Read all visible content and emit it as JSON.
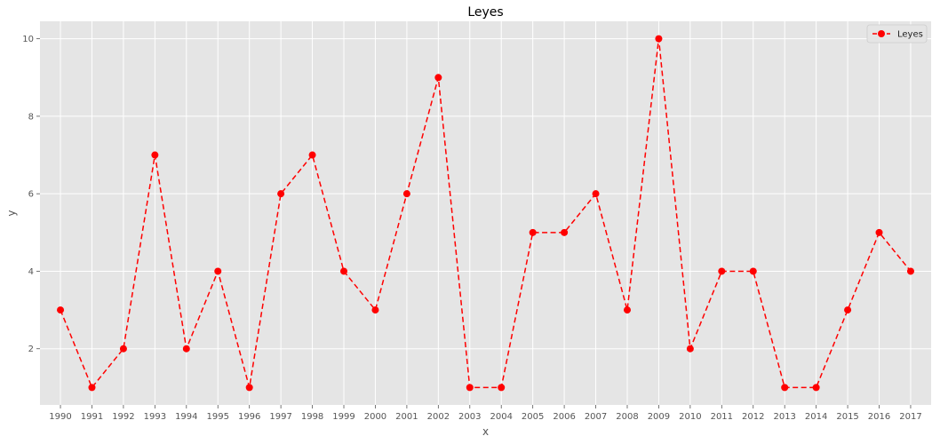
{
  "chart_data": {
    "type": "line",
    "title": "Leyes",
    "xlabel": "x",
    "ylabel": "y",
    "x": [
      1990,
      1991,
      1992,
      1993,
      1994,
      1995,
      1996,
      1997,
      1998,
      1999,
      2000,
      2001,
      2002,
      2003,
      2004,
      2005,
      2006,
      2007,
      2008,
      2009,
      2010,
      2011,
      2012,
      2013,
      2014,
      2015,
      2016,
      2017
    ],
    "x_tick_labels": [
      "1990",
      "1991",
      "1992",
      "1993",
      "1994",
      "1995",
      "1996",
      "1997",
      "1998",
      "1999",
      "2000",
      "2001",
      "2002",
      "2003",
      "2004",
      "2005",
      "2006",
      "2007",
      "2008",
      "2009",
      "2010",
      "2011",
      "2012",
      "2013",
      "2014",
      "2015",
      "2016",
      "2017"
    ],
    "y_ticks": [
      2,
      4,
      6,
      8,
      10
    ],
    "y_tick_labels": [
      "2",
      "4",
      "6",
      "8",
      "10"
    ],
    "xlim": [
      1989.35,
      2017.65
    ],
    "ylim": [
      0.55,
      10.45
    ],
    "grid": true,
    "legend_position": "top-right",
    "series": [
      {
        "name": "Leyes",
        "color": "#ff0000",
        "line_style": "dashed",
        "marker": "circle",
        "values": [
          3,
          1,
          2,
          7,
          2,
          4,
          1,
          6,
          7,
          4,
          3,
          6,
          9,
          1,
          1,
          5,
          5,
          6,
          3,
          10,
          2,
          4,
          4,
          1,
          1,
          3,
          5,
          4
        ]
      }
    ]
  }
}
